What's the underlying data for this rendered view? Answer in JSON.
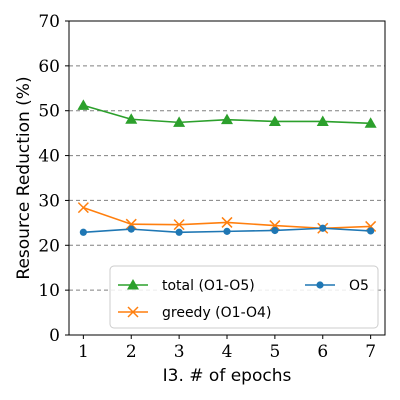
{
  "chart_data": {
    "type": "line",
    "xlabel": "I3. # of epochs",
    "ylabel": "Resource Reduction (%)",
    "x": [
      1,
      2,
      3,
      4,
      5,
      6,
      7
    ],
    "xticks": [
      "1",
      "2",
      "3",
      "4",
      "5",
      "6",
      "7"
    ],
    "ylim": [
      0,
      70
    ],
    "yticks": [
      "0",
      "10",
      "20",
      "30",
      "40",
      "50",
      "60",
      "70"
    ],
    "ytick_values": [
      0,
      10,
      20,
      30,
      40,
      50,
      60,
      70
    ],
    "grid": "horizontal dashed",
    "legend_position": "bottom",
    "series": [
      {
        "name": "total (O1-O5)",
        "marker": "triangle",
        "color": "#2ca02c",
        "values": [
          51.2,
          48.1,
          47.4,
          48.0,
          47.6,
          47.6,
          47.2
        ]
      },
      {
        "name": "greedy (O1-O4)",
        "marker": "x",
        "color": "#ff7f0e",
        "values": [
          28.4,
          24.7,
          24.6,
          25.1,
          24.4,
          23.8,
          24.2
        ]
      },
      {
        "name": "O5",
        "marker": "circle",
        "color": "#1f77b4",
        "values": [
          22.9,
          23.6,
          22.9,
          23.1,
          23.3,
          23.8,
          23.2
        ]
      }
    ],
    "legend_order": [
      0,
      2,
      1
    ]
  }
}
